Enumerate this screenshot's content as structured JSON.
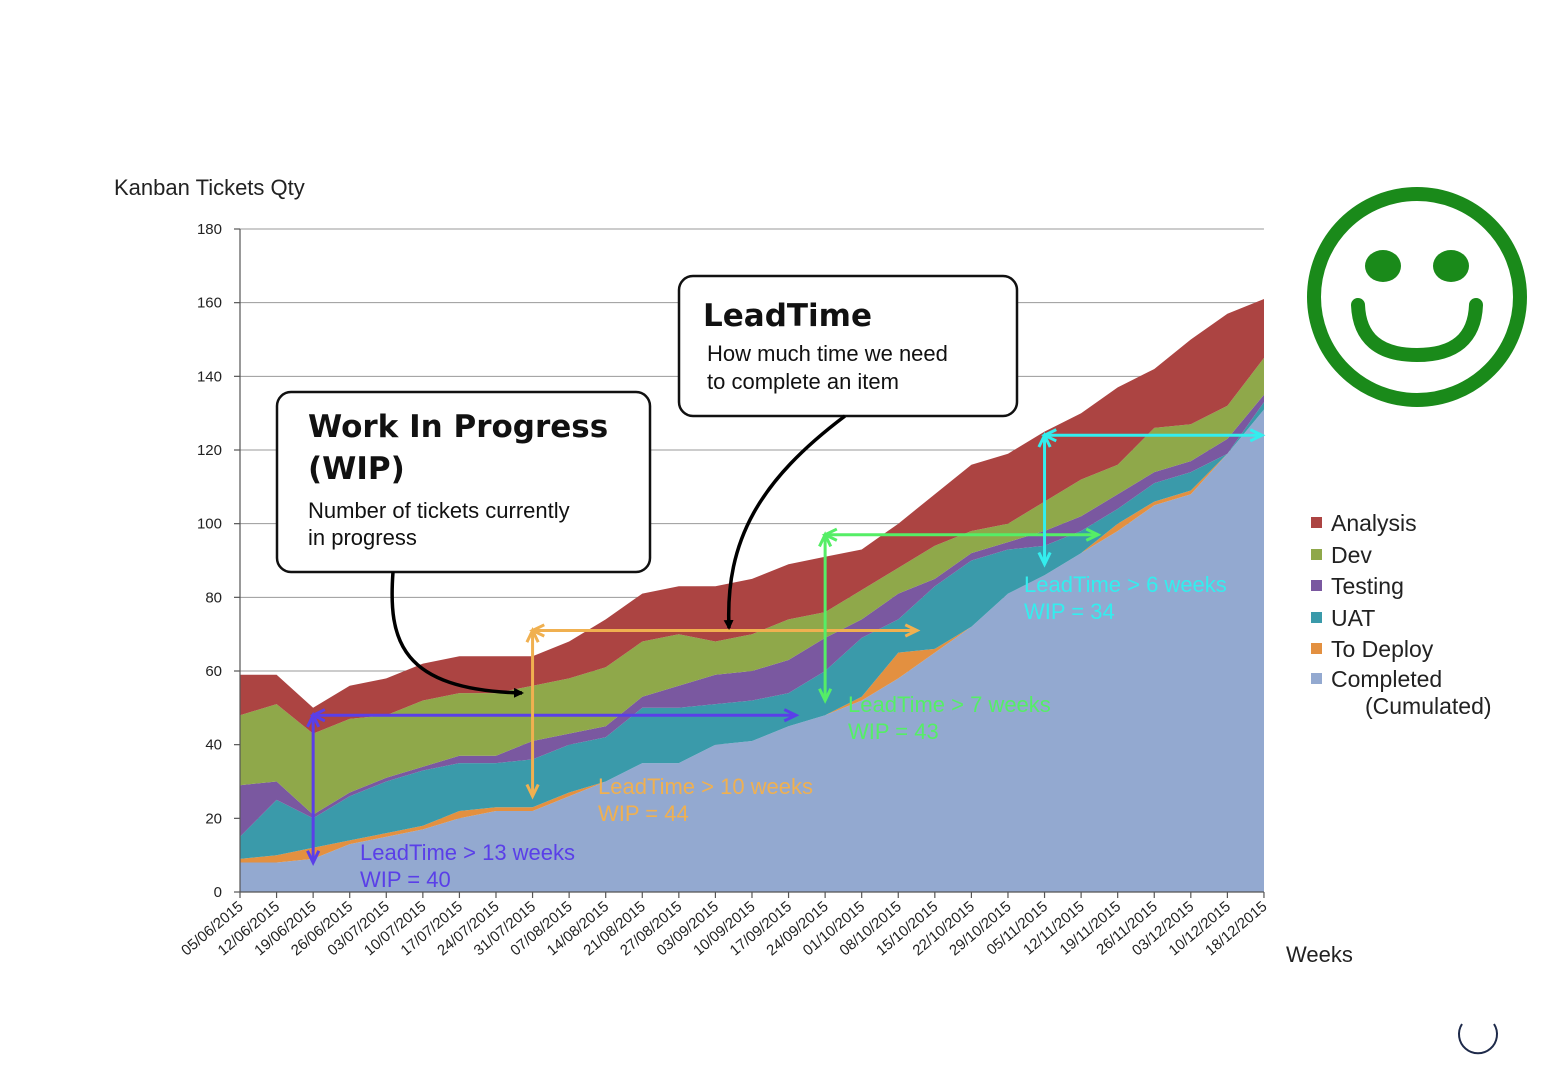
{
  "chart_data": {
    "type": "area",
    "stacked": true,
    "ylabel": "Kanban Tickets Qty",
    "xlabel": "Weeks",
    "ylim": [
      0,
      180
    ],
    "yticks": [
      0,
      20,
      40,
      60,
      80,
      100,
      120,
      140,
      160,
      180
    ],
    "grid": true,
    "legend_position": "right",
    "categories": [
      "05/06/2015",
      "12/06/2015",
      "19/06/2015",
      "26/06/2015",
      "03/07/2015",
      "10/07/2015",
      "17/07/2015",
      "24/07/2015",
      "31/07/2015",
      "07/08/2015",
      "14/08/2015",
      "21/08/2015",
      "27/08/2015",
      "03/09/2015",
      "10/09/2015",
      "17/09/2015",
      "24/09/2015",
      "01/10/2015",
      "08/10/2015",
      "15/10/2015",
      "22/10/2015",
      "29/10/2015",
      "05/11/2015",
      "12/11/2015",
      "19/11/2015",
      "26/11/2015",
      "03/12/2015",
      "10/12/2015",
      "18/12/2015"
    ],
    "series": [
      {
        "name": "Completed (Cumulated)",
        "color": "#93a9d0",
        "values": [
          8,
          8,
          9,
          13,
          15,
          17,
          20,
          22,
          22,
          26,
          30,
          35,
          35,
          40,
          41,
          45,
          48,
          52,
          58,
          65,
          72,
          81,
          86,
          92,
          98,
          105,
          108,
          119,
          131
        ]
      },
      {
        "name": "To Deploy",
        "color": "#e39040",
        "values": [
          1,
          2,
          3,
          1,
          1,
          1,
          2,
          1,
          1,
          1,
          0,
          0,
          0,
          0,
          0,
          0,
          0,
          1,
          7,
          1,
          0,
          0,
          0,
          0,
          2,
          1,
          1,
          0,
          0
        ]
      },
      {
        "name": "UAT",
        "color": "#3a9aaa",
        "values": [
          6,
          15,
          8,
          12,
          14,
          15,
          13,
          12,
          13,
          13,
          12,
          15,
          15,
          11,
          11,
          9,
          12,
          16,
          9,
          17,
          18,
          12,
          8,
          6,
          4,
          5,
          5,
          0,
          2
        ]
      },
      {
        "name": "Testing",
        "color": "#7a58a0",
        "values": [
          14,
          5,
          1,
          1,
          1,
          1,
          2,
          2,
          5,
          3,
          3,
          3,
          6,
          8,
          8,
          9,
          9,
          5,
          7,
          2,
          2,
          2,
          4,
          4,
          4,
          3,
          3,
          4,
          2
        ]
      },
      {
        "name": "Dev",
        "color": "#8fa84a",
        "values": [
          19,
          21,
          22,
          20,
          17,
          18,
          17,
          17,
          15,
          15,
          16,
          15,
          14,
          9,
          10,
          11,
          7,
          8,
          7,
          9,
          6,
          5,
          8,
          10,
          8,
          12,
          10,
          9,
          10
        ]
      },
      {
        "name": "Analysis",
        "color": "#ac4442",
        "values": [
          11,
          8,
          7,
          9,
          10,
          10,
          10,
          10,
          8,
          10,
          13,
          13,
          13,
          15,
          15,
          15,
          15,
          11,
          12,
          14,
          18,
          19,
          19,
          18,
          21,
          16,
          23,
          25,
          16
        ]
      }
    ],
    "legend": [
      "Analysis",
      "Dev",
      "Testing",
      "UAT",
      "To Deploy",
      "Completed",
      "(Cumulated)"
    ],
    "annotations": [
      {
        "text": "LeadTime > 13 weeks",
        "text2": "WIP = 40",
        "color": "#5a3fe8"
      },
      {
        "text": "LeadTime > 10 weeks",
        "text2": "WIP = 44",
        "color": "#f0b050"
      },
      {
        "text": "LeadTime > 7 weeks",
        "text2": "WIP = 43",
        "color": "#55ee66"
      },
      {
        "text": "LeadTime > 6 weeks",
        "text2": "WIP = 34",
        "color": "#33eeee"
      }
    ]
  },
  "callouts": {
    "wip": {
      "title_line1": "Work In Progress",
      "title_line2": "(WIP)",
      "body_line1": "Number of tickets currently",
      "body_line2": "in progress"
    },
    "leadtime": {
      "title": "LeadTime",
      "body_line1": "How much time we need",
      "body_line2": "to complete an item"
    }
  },
  "icons": {
    "smiley": "smiley-face-icon",
    "smiley_color": "#1a8a1a",
    "corner": "circle-arc-icon"
  }
}
